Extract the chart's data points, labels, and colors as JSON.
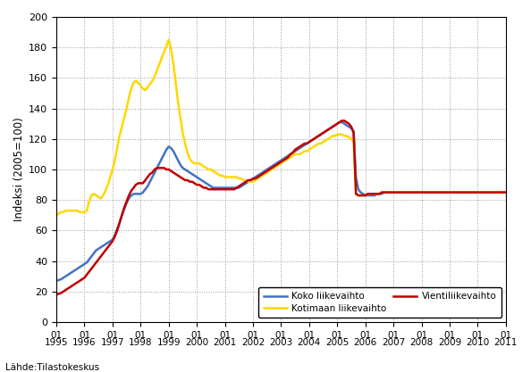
{
  "ylabel": "Indeksi (2005=100)",
  "source": "Lähde:Tilastokeskus",
  "ylim": [
    0,
    200
  ],
  "yticks": [
    0,
    20,
    40,
    60,
    80,
    100,
    120,
    140,
    160,
    180,
    200
  ],
  "legend": {
    "koko": "Koko liikevaihto",
    "kotimaan": "Kotimaan liikevaihto",
    "vienti": "Vientiliikevaihto"
  },
  "colors": {
    "koko": "#4472C4",
    "kotimaan": "#FFD700",
    "vienti": "#C00000"
  },
  "koko_liikevaihto": [
    27,
    27.5,
    28,
    29,
    30,
    31,
    32,
    33,
    34,
    35,
    36,
    37,
    38,
    39,
    41,
    43,
    45,
    47,
    48,
    49,
    50,
    51,
    52,
    53,
    54,
    57,
    61,
    65,
    70,
    74,
    78,
    81,
    83,
    84,
    84,
    84,
    84,
    85,
    87,
    89,
    92,
    95,
    98,
    101,
    104,
    107,
    110,
    113,
    115,
    114,
    112,
    109,
    106,
    103,
    101,
    100,
    99,
    98,
    97,
    96,
    95,
    94,
    93,
    92,
    91,
    90,
    89,
    88,
    88,
    88,
    88,
    88,
    88,
    88,
    88,
    88,
    88,
    88,
    88,
    89,
    90,
    91,
    92,
    93,
    94,
    95,
    96,
    97,
    98,
    99,
    100,
    101,
    102,
    103,
    104,
    105,
    106,
    107,
    108,
    109,
    110,
    111,
    112,
    113,
    114,
    115,
    116,
    117,
    118,
    119,
    120,
    121,
    122,
    123,
    124,
    125,
    126,
    127,
    128,
    129,
    130,
    131,
    131,
    130,
    129,
    128,
    127,
    125,
    95,
    87,
    85,
    84,
    83,
    83,
    83,
    83,
    83,
    84,
    84,
    84,
    85,
    85,
    85,
    85,
    85,
    85,
    85,
    85,
    85,
    85,
    85,
    85,
    85,
    85,
    85,
    85,
    85,
    85,
    85,
    85,
    85,
    85,
    85,
    85,
    85,
    85,
    85,
    85,
    85,
    85,
    85,
    85,
    85,
    85,
    85,
    85,
    85,
    85,
    85,
    85,
    85,
    85,
    85,
    85,
    85,
    85,
    85,
    85,
    85,
    85,
    85,
    85,
    85
  ],
  "kotimaan_liikevaihto": [
    70,
    71,
    72,
    72,
    73,
    73,
    73,
    73,
    73,
    73,
    72,
    72,
    72,
    73,
    79,
    83,
    84,
    83,
    82,
    81,
    83,
    86,
    90,
    95,
    100,
    106,
    114,
    122,
    128,
    134,
    140,
    147,
    153,
    157,
    158,
    157,
    155,
    153,
    152,
    154,
    156,
    158,
    161,
    165,
    169,
    173,
    177,
    181,
    185,
    179,
    169,
    157,
    144,
    134,
    124,
    117,
    111,
    107,
    105,
    104,
    104,
    104,
    103,
    102,
    101,
    100,
    100,
    99,
    98,
    97,
    96,
    96,
    95,
    95,
    95,
    95,
    95,
    95,
    94,
    94,
    93,
    93,
    92,
    92,
    92,
    93,
    94,
    95,
    96,
    97,
    98,
    99,
    100,
    101,
    102,
    103,
    104,
    105,
    106,
    107,
    108,
    109,
    110,
    110,
    110,
    111,
    112,
    112,
    113,
    114,
    115,
    116,
    117,
    117,
    118,
    119,
    120,
    121,
    122,
    122,
    123,
    123,
    123,
    122,
    122,
    121,
    120,
    118,
    84,
    83,
    83,
    83,
    83,
    84,
    84,
    84,
    84,
    84,
    84,
    85,
    85,
    85,
    85,
    85,
    85,
    85,
    85,
    85,
    85,
    85,
    85,
    85,
    85,
    85,
    85,
    85,
    85,
    85,
    85,
    85,
    85,
    85,
    85,
    85,
    85,
    85,
    85,
    85,
    85,
    85,
    85,
    85,
    85,
    85,
    85,
    85,
    85,
    85,
    85,
    85,
    85,
    85,
    85,
    85,
    85,
    85,
    85,
    85,
    85,
    85,
    85,
    85,
    85
  ],
  "vienti_liikevaihto": [
    18,
    18.5,
    19,
    20,
    21,
    22,
    23,
    24,
    25,
    26,
    27,
    28,
    29,
    31,
    33,
    35,
    37,
    39,
    41,
    43,
    45,
    47,
    49,
    51,
    53,
    56,
    60,
    65,
    70,
    75,
    79,
    83,
    86,
    88,
    90,
    91,
    91,
    91,
    93,
    95,
    97,
    98,
    100,
    101,
    101,
    101,
    101,
    100,
    100,
    99,
    98,
    97,
    96,
    95,
    94,
    93,
    93,
    92,
    92,
    91,
    90,
    90,
    89,
    88,
    88,
    87,
    87,
    87,
    87,
    87,
    87,
    87,
    87,
    87,
    87,
    87,
    87,
    88,
    89,
    90,
    91,
    92,
    93,
    93,
    94,
    94,
    95,
    96,
    97,
    98,
    99,
    100,
    101,
    102,
    103,
    104,
    105,
    106,
    107,
    108,
    110,
    111,
    113,
    114,
    115,
    116,
    117,
    117,
    118,
    119,
    120,
    121,
    122,
    123,
    124,
    125,
    126,
    127,
    128,
    129,
    130,
    131,
    132,
    132,
    131,
    130,
    128,
    124,
    84,
    83,
    83,
    83,
    83,
    84,
    84,
    84,
    84,
    84,
    84,
    85,
    85,
    85,
    85,
    85,
    85,
    85,
    85,
    85,
    85,
    85,
    85,
    85,
    85,
    85,
    85,
    85,
    85,
    85,
    85,
    85,
    85,
    85,
    85,
    85,
    85,
    85,
    85,
    85,
    85,
    85,
    85,
    85,
    85,
    85,
    85,
    85,
    85,
    85,
    85,
    85,
    85,
    85,
    85,
    85,
    85,
    85,
    85,
    85,
    85,
    85,
    85,
    85,
    85
  ],
  "x_tick_positions": [
    0,
    12,
    24,
    36,
    48,
    60,
    72,
    84,
    96,
    108,
    120,
    132,
    144,
    156,
    168,
    180,
    192
  ],
  "x_tick_labels": [
    "01\n1995",
    "01\n1996",
    "01\n1997",
    "01\n1998",
    "01\n1999",
    "01\n2000",
    "01\n2001",
    "01\n2002",
    "01\n2003",
    "01\n2004",
    "01\n2005",
    "01\n2006",
    "01\n2007",
    "01\n2008",
    "01\n2009",
    "01\n2010",
    "01\n2011"
  ],
  "line_width": 1.8,
  "background_color": "#ffffff",
  "grid_color": "#999999"
}
